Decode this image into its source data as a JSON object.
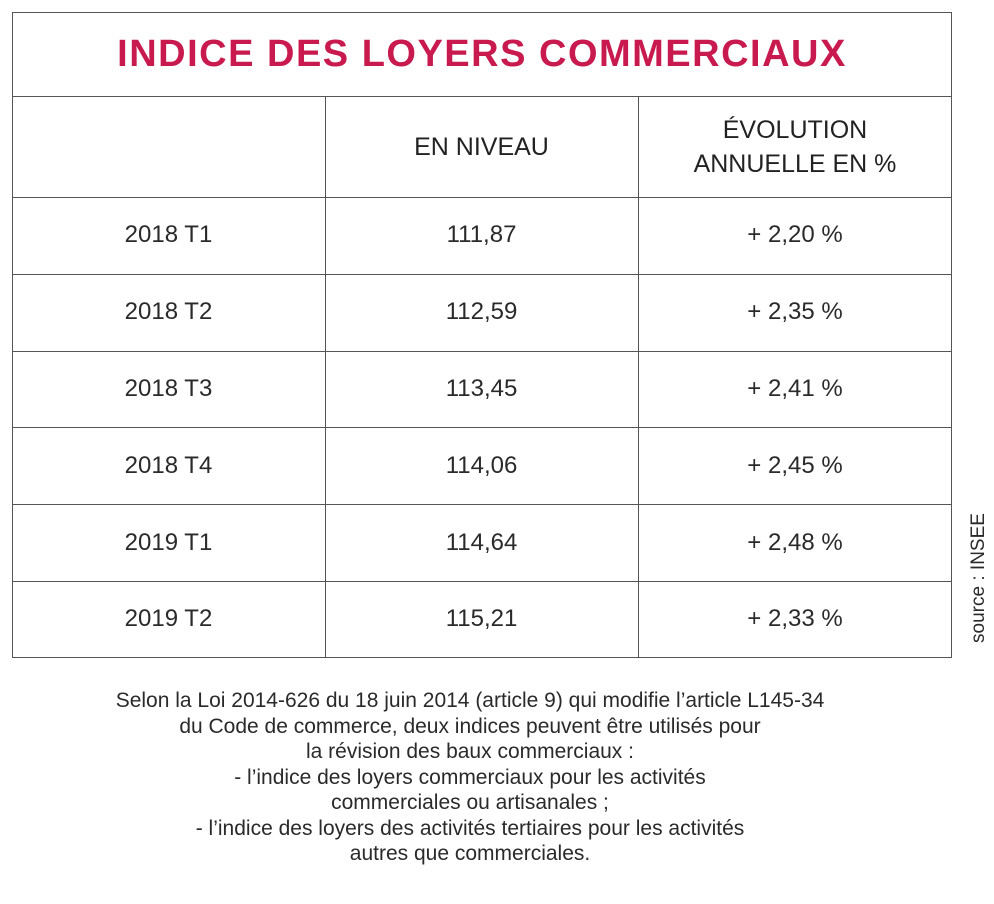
{
  "header": {
    "title": "INDICE DES LOYERS COMMERCIAUX"
  },
  "table": {
    "columns": [
      [
        "EN NIVEAU"
      ],
      [
        "ÉVOLUTION",
        "ANNUELLE EN %"
      ]
    ],
    "rows": [
      [
        "2018 T1",
        "111,87",
        "+ 2,20 %"
      ],
      [
        "2018 T2",
        "112,59",
        "+ 2,35 %"
      ],
      [
        "2018 T3",
        "113,45",
        "+ 2,41 %"
      ],
      [
        "2018 T4",
        "114,06",
        "+ 2,45 %"
      ],
      [
        "2019 T1",
        "114,64",
        "+ 2,48 %"
      ],
      [
        "2019 T2",
        "115,21",
        "+ 2,33 %"
      ]
    ]
  },
  "source": "source : INSEE",
  "note": {
    "lines": [
      "Selon la Loi 2014-626 du 18 juin 2014 (article 9) qui modifie l’article L145-34",
      "du Code de commerce, deux indices peuvent être utilisés pour",
      "la révision des baux commerciaux :",
      "- l’indice des loyers commerciaux pour les activités",
      "commerciales ou artisanales ;",
      "- l’indice des loyers des activités tertiaires pour les activités",
      "autres que commerciales."
    ]
  }
}
